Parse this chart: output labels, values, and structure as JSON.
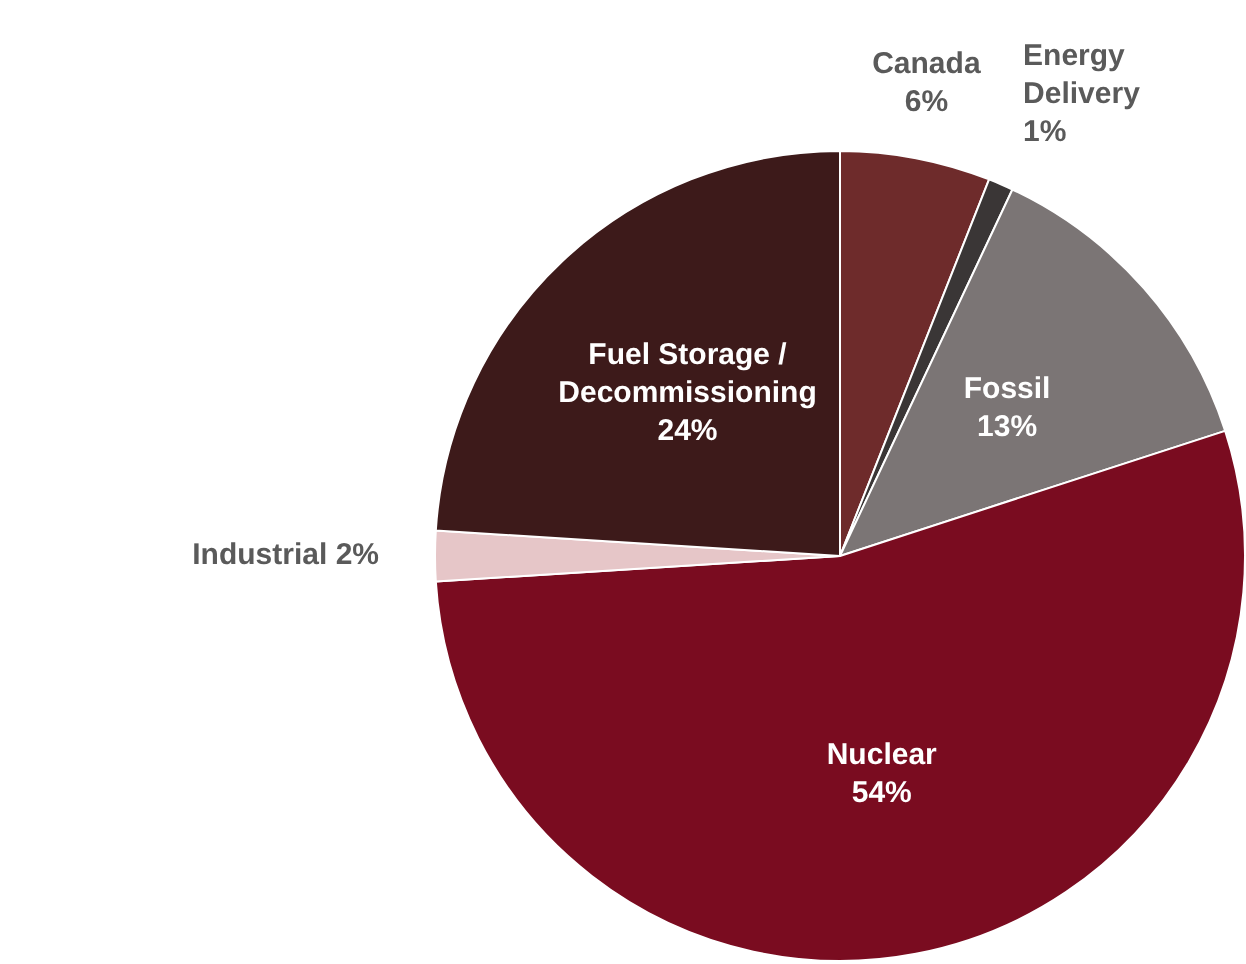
{
  "chart_data": {
    "type": "pie",
    "categories": [
      "Canada",
      "Energy Delivery",
      "Fossil",
      "Nuclear",
      "Industrial",
      "Fuel Storage / Decommissioning"
    ],
    "values": [
      6,
      1,
      13,
      54,
      2,
      24
    ],
    "value_labels": [
      "6%",
      "1%",
      "13%",
      "54%",
      "2%",
      "24%"
    ],
    "colors": [
      "#6e2b2b",
      "#3a3636",
      "#7b7575",
      "#7a0c20",
      "#e6c6c8",
      "#3d1a1a"
    ],
    "legend": false
  }
}
